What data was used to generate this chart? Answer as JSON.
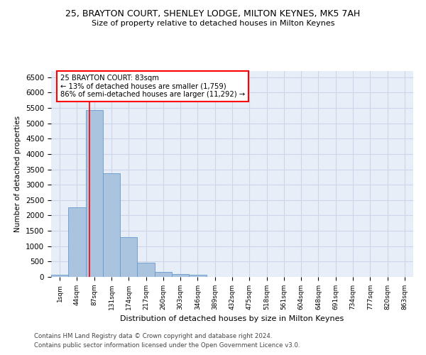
{
  "title1": "25, BRAYTON COURT, SHENLEY LODGE, MILTON KEYNES, MK5 7AH",
  "title2": "Size of property relative to detached houses in Milton Keynes",
  "xlabel": "Distribution of detached houses by size in Milton Keynes",
  "ylabel": "Number of detached properties",
  "footnote1": "Contains HM Land Registry data © Crown copyright and database right 2024.",
  "footnote2": "Contains public sector information licensed under the Open Government Licence v3.0.",
  "bar_labels": [
    "1sqm",
    "44sqm",
    "87sqm",
    "131sqm",
    "174sqm",
    "217sqm",
    "260sqm",
    "303sqm",
    "346sqm",
    "389sqm",
    "432sqm",
    "475sqm",
    "518sqm",
    "561sqm",
    "604sqm",
    "648sqm",
    "691sqm",
    "734sqm",
    "777sqm",
    "820sqm",
    "863sqm"
  ],
  "bar_values": [
    80,
    2270,
    5430,
    3380,
    1300,
    470,
    160,
    90,
    60,
    0,
    0,
    0,
    0,
    0,
    0,
    0,
    0,
    0,
    0,
    0,
    0
  ],
  "bar_color": "#aac4e0",
  "bar_edge_color": "#6699cc",
  "grid_color": "#ccd6e8",
  "background_color": "#e8eef8",
  "annotation_text": "25 BRAYTON COURT: 83sqm\n← 13% of detached houses are smaller (1,759)\n86% of semi-detached houses are larger (11,292) →",
  "annotation_box_color": "white",
  "annotation_box_edge": "red",
  "vline_x": 1.72,
  "vline_color": "red",
  "ylim": [
    0,
    6700
  ],
  "xlim": [
    -0.5,
    20.5
  ],
  "yticks": [
    0,
    500,
    1000,
    1500,
    2000,
    2500,
    3000,
    3500,
    4000,
    4500,
    5000,
    5500,
    6000,
    6500
  ]
}
